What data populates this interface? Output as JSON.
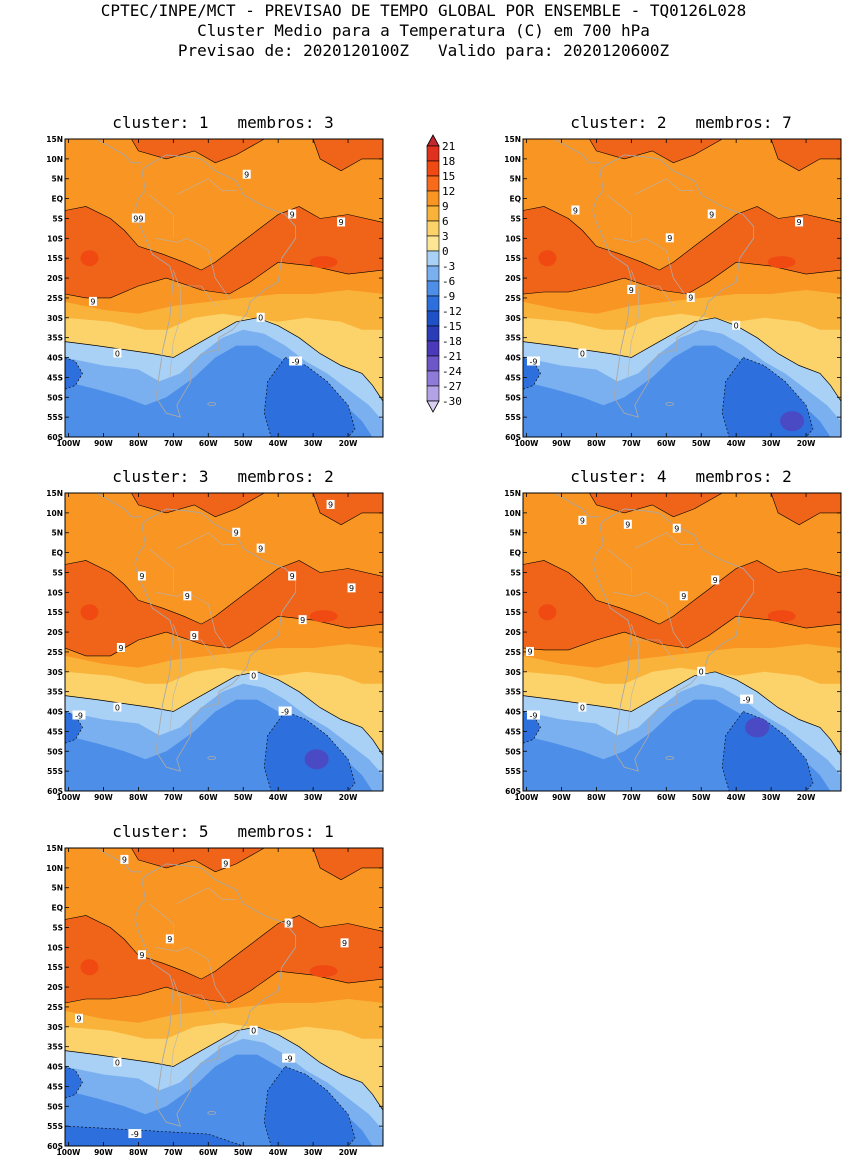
{
  "header": {
    "line1": "CPTEC/INPE/MCT - PREVISAO DE TEMPO GLOBAL POR ENSEMBLE - TQ0126L028",
    "line2": "Cluster Medio para a Temperatura (C) em 700 hPa",
    "line3": "Previsao de: 2020120100Z   Valido para: 2020120600Z"
  },
  "colorbar": {
    "labels": [
      "21",
      "18",
      "15",
      "12",
      "9",
      "6",
      "3",
      "0",
      "-3",
      "-6",
      "-9",
      "-12",
      "-15",
      "-18",
      "-21",
      "-24",
      "-27",
      "-30"
    ],
    "colors": [
      "#c0282d",
      "#e0301e",
      "#f04a12",
      "#f86b1a",
      "#f99522",
      "#fab33a",
      "#fcd26a",
      "#fde794",
      "#a9d0f5",
      "#7ab0ef",
      "#4d8ee8",
      "#2d6fdc",
      "#1e50c8",
      "#2a3cb8",
      "#4a3aba",
      "#6c56c8",
      "#8e7ad8",
      "#b4a2e6",
      "#d8cef2"
    ]
  },
  "axes": {
    "lat_labels": [
      "15N",
      "10N",
      "5N",
      "EQ",
      "5S",
      "10S",
      "15S",
      "20S",
      "25S",
      "30S",
      "35S",
      "40S",
      "45S",
      "50S",
      "55S",
      "60S"
    ],
    "lon_labels": [
      "100W",
      "90W",
      "80W",
      "70W",
      "60W",
      "50W",
      "40W",
      "30W",
      "20W"
    ]
  },
  "panels": [
    {
      "title": "cluster: 1   membros: 3",
      "labels": [
        {
          "text": "9",
          "lon": -49,
          "lat": 6
        },
        {
          "text": "9",
          "lon": -36,
          "lat": -4
        },
        {
          "text": "99",
          "lon": -80,
          "lat": -5
        },
        {
          "text": "9",
          "lon": -22,
          "lat": -6
        },
        {
          "text": "9",
          "lon": -93,
          "lat": -26
        },
        {
          "text": "0",
          "lon": -45,
          "lat": -30
        },
        {
          "text": "0",
          "lon": -86,
          "lat": -39
        },
        {
          "text": "-9",
          "lon": -35,
          "lat": -41
        }
      ]
    },
    {
      "title": "cluster: 2   membros: 7",
      "labels": [
        {
          "text": "9",
          "lon": -86,
          "lat": -3
        },
        {
          "text": "9",
          "lon": -47,
          "lat": -4
        },
        {
          "text": "9",
          "lon": -22,
          "lat": -6
        },
        {
          "text": "9",
          "lon": -59,
          "lat": -10
        },
        {
          "text": "9",
          "lon": -70,
          "lat": -23
        },
        {
          "text": "9",
          "lon": -53,
          "lat": -25
        },
        {
          "text": "0",
          "lon": -40,
          "lat": -32
        },
        {
          "text": "0",
          "lon": -84,
          "lat": -39
        },
        {
          "text": "-9",
          "lon": -98,
          "lat": -41
        }
      ]
    },
    {
      "title": "cluster: 3   membros: 2",
      "labels": [
        {
          "text": "9",
          "lon": -25,
          "lat": 12
        },
        {
          "text": "9",
          "lon": -52,
          "lat": 5
        },
        {
          "text": "9",
          "lon": -45,
          "lat": 1
        },
        {
          "text": "9",
          "lon": -79,
          "lat": -6
        },
        {
          "text": "9",
          "lon": -36,
          "lat": -6
        },
        {
          "text": "9",
          "lon": -19,
          "lat": -9
        },
        {
          "text": "9",
          "lon": -66,
          "lat": -11
        },
        {
          "text": "9",
          "lon": -33,
          "lat": -17
        },
        {
          "text": "9",
          "lon": -64,
          "lat": -21
        },
        {
          "text": "9",
          "lon": -85,
          "lat": -24
        },
        {
          "text": "0",
          "lon": -47,
          "lat": -31
        },
        {
          "text": "0",
          "lon": -86,
          "lat": -39
        },
        {
          "text": "-9",
          "lon": -97,
          "lat": -41
        },
        {
          "text": "-9",
          "lon": -38,
          "lat": -40
        }
      ]
    },
    {
      "title": "cluster: 4   membros: 2",
      "labels": [
        {
          "text": "9",
          "lon": -84,
          "lat": 8
        },
        {
          "text": "9",
          "lon": -71,
          "lat": 7
        },
        {
          "text": "9",
          "lon": -57,
          "lat": 6
        },
        {
          "text": "9",
          "lon": -46,
          "lat": -7
        },
        {
          "text": "9",
          "lon": -55,
          "lat": -11
        },
        {
          "text": "9",
          "lon": -99,
          "lat": -25
        },
        {
          "text": "0",
          "lon": -50,
          "lat": -30
        },
        {
          "text": "0",
          "lon": -84,
          "lat": -39
        },
        {
          "text": "-9",
          "lon": -37,
          "lat": -37
        },
        {
          "text": "-9",
          "lon": -98,
          "lat": -41
        }
      ]
    },
    {
      "title": "cluster: 5   membros: 1",
      "labels": [
        {
          "text": "9",
          "lon": -84,
          "lat": 12
        },
        {
          "text": "9",
          "lon": -55,
          "lat": 11
        },
        {
          "text": "9",
          "lon": -37,
          "lat": -4
        },
        {
          "text": "9",
          "lon": -71,
          "lat": -8
        },
        {
          "text": "9",
          "lon": -21,
          "lat": -9
        },
        {
          "text": "9",
          "lon": -79,
          "lat": -12
        },
        {
          "text": "9",
          "lon": -97,
          "lat": -28
        },
        {
          "text": "0",
          "lon": -47,
          "lat": -31
        },
        {
          "text": "0",
          "lon": -86,
          "lat": -39
        },
        {
          "text": "-9",
          "lon": -37,
          "lat": -38
        },
        {
          "text": "-9",
          "lon": -81,
          "lat": -57
        }
      ]
    }
  ]
}
